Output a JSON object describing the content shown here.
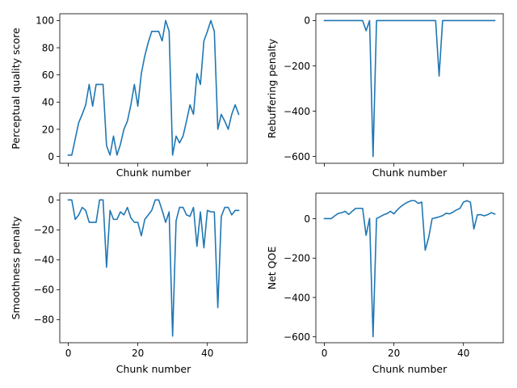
{
  "chart_data": [
    {
      "id": "quality",
      "type": "line",
      "xlabel": "Chunk number",
      "ylabel": "Perceptual quality score",
      "xlim": [
        -2.45,
        51.45
      ],
      "ylim": [
        -5,
        105
      ],
      "xticks": [
        0,
        20,
        40
      ],
      "yticks": [
        0,
        20,
        40,
        60,
        80,
        100
      ],
      "show_xtick_labels": false,
      "color": "#1f77b4",
      "series": [
        {
          "x": [
            0,
            1,
            2,
            3,
            4,
            5,
            6,
            7,
            8,
            9,
            10,
            11,
            12,
            13,
            14,
            15,
            16,
            17,
            18,
            19,
            20,
            21,
            22,
            23,
            24,
            25,
            26,
            27,
            28,
            29,
            30,
            31,
            32,
            33,
            34,
            35,
            36,
            37,
            38,
            39,
            40,
            41,
            42,
            43,
            44,
            45,
            46,
            47,
            48,
            49
          ],
          "y": [
            1,
            1,
            13,
            25,
            31,
            38,
            53,
            37,
            53,
            53,
            53,
            8,
            1,
            15,
            1,
            9,
            20,
            26,
            38,
            53,
            37,
            61,
            74,
            84,
            92,
            92,
            92,
            85,
            100,
            92,
            1,
            15,
            10,
            15,
            26,
            38,
            31,
            61,
            53,
            85,
            92,
            100,
            92,
            20,
            31,
            26,
            20,
            31,
            38,
            31
          ]
        }
      ]
    },
    {
      "id": "rebuffering",
      "type": "line",
      "xlabel": "Chunk number",
      "ylabel": "Rebuffering penalty",
      "xlim": [
        -2.45,
        51.45
      ],
      "ylim": [
        -630,
        30
      ],
      "xticks": [
        0,
        20,
        40
      ],
      "yticks": [
        -600,
        -400,
        -200,
        0
      ],
      "show_xtick_labels": false,
      "color": "#1f77b4",
      "series": [
        {
          "x": [
            0,
            1,
            2,
            3,
            4,
            5,
            6,
            7,
            8,
            9,
            10,
            11,
            12,
            13,
            14,
            15,
            16,
            17,
            18,
            19,
            20,
            21,
            22,
            23,
            24,
            25,
            26,
            27,
            28,
            29,
            30,
            31,
            32,
            33,
            34,
            35,
            36,
            37,
            38,
            39,
            40,
            41,
            42,
            43,
            44,
            45,
            46,
            47,
            48,
            49
          ],
          "y": [
            0,
            0,
            0,
            0,
            0,
            0,
            0,
            0,
            0,
            0,
            0,
            0,
            -45,
            0,
            -600,
            0,
            0,
            0,
            0,
            0,
            0,
            0,
            0,
            0,
            0,
            0,
            0,
            0,
            0,
            0,
            0,
            0,
            0,
            -245,
            0,
            0,
            0,
            0,
            0,
            0,
            0,
            0,
            0,
            0,
            0,
            0,
            0,
            0,
            0,
            0
          ]
        }
      ]
    },
    {
      "id": "smoothness",
      "type": "line",
      "xlabel": "Chunk number",
      "ylabel": "Smoothness penalty",
      "xlim": [
        -2.45,
        51.45
      ],
      "ylim": [
        -95.5,
        4.5
      ],
      "xticks": [
        0,
        20,
        40
      ],
      "yticks": [
        -80,
        -60,
        -40,
        -20,
        0
      ],
      "show_xtick_labels": true,
      "color": "#1f77b4",
      "series": [
        {
          "x": [
            0,
            1,
            2,
            3,
            4,
            5,
            6,
            7,
            8,
            9,
            10,
            11,
            12,
            13,
            14,
            15,
            16,
            17,
            18,
            19,
            20,
            21,
            22,
            23,
            24,
            25,
            26,
            27,
            28,
            29,
            30,
            31,
            32,
            33,
            34,
            35,
            36,
            37,
            38,
            39,
            40,
            41,
            42,
            43,
            44,
            45,
            46,
            47,
            48,
            49
          ],
          "y": [
            0,
            0,
            -13,
            -10,
            -5,
            -7,
            -15,
            -15,
            -15,
            0,
            0,
            -45,
            -7,
            -13,
            -13,
            -8,
            -10,
            -5,
            -12,
            -15,
            -15,
            -24,
            -13,
            -10,
            -7,
            0,
            0,
            -7,
            -15,
            -8,
            -91,
            -14,
            -5,
            -5,
            -10,
            -11,
            -5,
            -31,
            -8,
            -32,
            -7,
            -8,
            -8,
            -72,
            -11,
            -5,
            -5,
            -10,
            -7,
            -7
          ]
        }
      ]
    },
    {
      "id": "net-qoe",
      "type": "line",
      "xlabel": "Chunk number",
      "ylabel": "Net QOE",
      "xlim": [
        -2.45,
        51.45
      ],
      "ylim": [
        -630,
        130
      ],
      "xticks": [
        0,
        20,
        40
      ],
      "yticks": [
        -600,
        -400,
        -200,
        0
      ],
      "show_xtick_labels": true,
      "color": "#1f77b4",
      "series": [
        {
          "x": [
            0,
            1,
            2,
            3,
            4,
            5,
            6,
            7,
            8,
            9,
            10,
            11,
            12,
            13,
            14,
            15,
            16,
            17,
            18,
            19,
            20,
            21,
            22,
            23,
            24,
            25,
            26,
            27,
            28,
            29,
            30,
            31,
            32,
            33,
            34,
            35,
            36,
            37,
            38,
            39,
            40,
            41,
            42,
            43,
            44,
            45,
            46,
            47,
            48,
            49
          ],
          "y": [
            1,
            1,
            1,
            15,
            27,
            31,
            38,
            22,
            38,
            53,
            53,
            53,
            -84,
            2,
            -599,
            1,
            10,
            20,
            26,
            38,
            25,
            46,
            62,
            75,
            85,
            92,
            92,
            78,
            85,
            -160,
            -95,
            1,
            5,
            10,
            16,
            28,
            25,
            34,
            45,
            53,
            85,
            92,
            84,
            -52,
            20,
            21,
            15,
            21,
            31,
            24
          ]
        }
      ]
    }
  ]
}
